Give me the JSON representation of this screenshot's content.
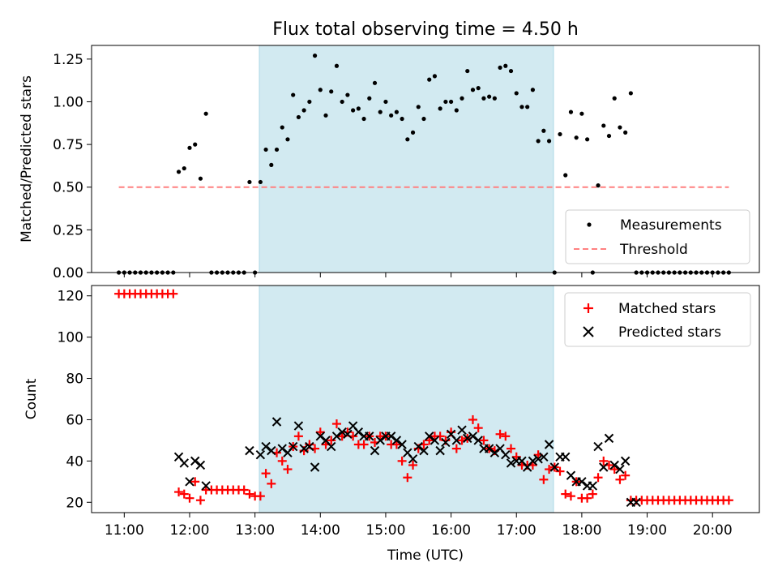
{
  "title": "Flux total observing time = 4.50 h",
  "colors": {
    "window_fill": "#add8e6",
    "measurement": "#000000",
    "threshold": "#ff8080",
    "matched": "#ff0000",
    "predicted": "#000000"
  },
  "chart_data": [
    {
      "type": "scatter",
      "panel": "top",
      "ylabel": "Matched/Predicted stars",
      "xlabel": "",
      "ylim": [
        0,
        1.33
      ],
      "yticks": [
        0.0,
        0.25,
        0.5,
        0.75,
        1.0,
        1.25
      ],
      "ytick_labels": [
        "0.00",
        "0.25",
        "0.50",
        "0.75",
        "1.00",
        "1.25"
      ],
      "observing_window_utc": [
        "13:04",
        "17:34"
      ],
      "legend_position": "lower right",
      "threshold": {
        "name": "Threshold",
        "value": 0.5,
        "x_range": [
          "10:55",
          "20:15"
        ],
        "style": "dashed"
      },
      "series": [
        {
          "name": "Measurements",
          "x": [
            "10:55",
            "11:00",
            "11:05",
            "11:10",
            "11:15",
            "11:20",
            "11:25",
            "11:30",
            "11:35",
            "11:40",
            "11:45",
            "11:50",
            "11:55",
            "12:00",
            "12:05",
            "12:10",
            "12:15",
            "12:20",
            "12:25",
            "12:30",
            "12:35",
            "12:40",
            "12:45",
            "12:50",
            "12:55",
            "13:00",
            "13:05",
            "13:10",
            "13:15",
            "13:20",
            "13:25",
            "13:30",
            "13:35",
            "13:40",
            "13:45",
            "13:50",
            "13:55",
            "14:00",
            "14:05",
            "14:10",
            "14:15",
            "14:20",
            "14:25",
            "14:30",
            "14:35",
            "14:40",
            "14:45",
            "14:50",
            "14:55",
            "15:00",
            "15:05",
            "15:10",
            "15:15",
            "15:20",
            "15:25",
            "15:30",
            "15:35",
            "15:40",
            "15:45",
            "15:50",
            "15:55",
            "16:00",
            "16:05",
            "16:10",
            "16:15",
            "16:20",
            "16:25",
            "16:30",
            "16:35",
            "16:40",
            "16:45",
            "16:50",
            "16:55",
            "17:00",
            "17:05",
            "17:10",
            "17:15",
            "17:20",
            "17:25",
            "17:30",
            "17:35",
            "17:40",
            "17:45",
            "17:50",
            "17:55",
            "18:00",
            "18:05",
            "18:10",
            "18:15",
            "18:20",
            "18:25",
            "18:30",
            "18:35",
            "18:40",
            "18:45",
            "18:50",
            "18:55",
            "19:00",
            "19:05",
            "19:10",
            "19:15",
            "19:20",
            "19:25",
            "19:30",
            "19:35",
            "19:40",
            "19:45",
            "19:50",
            "19:55",
            "20:00",
            "20:05",
            "20:10",
            "20:15"
          ],
          "y": [
            0,
            0,
            0,
            0,
            0,
            0,
            0,
            0,
            0,
            0,
            0,
            0.59,
            0.61,
            0.73,
            0.75,
            0.55,
            0.93,
            0,
            0,
            0,
            0,
            0,
            0,
            0,
            0.53,
            0,
            0.53,
            0.72,
            0.63,
            0.72,
            0.85,
            0.78,
            1.04,
            0.91,
            0.95,
            1.0,
            1.27,
            1.07,
            0.92,
            1.06,
            1.21,
            1.0,
            1.04,
            0.95,
            0.96,
            0.9,
            1.02,
            1.11,
            0.94,
            1.0,
            0.92,
            0.94,
            0.9,
            0.78,
            0.82,
            0.97,
            0.9,
            1.13,
            1.15,
            0.96,
            1.0,
            1.0,
            0.95,
            1.02,
            1.18,
            1.07,
            1.08,
            1.02,
            1.03,
            1.02,
            1.2,
            1.21,
            1.18,
            1.05,
            0.97,
            0.97,
            1.07,
            0.77,
            0.83,
            0.77,
            0,
            0.81,
            0.57,
            0.94,
            0.79,
            0.93,
            0.78,
            0,
            0.51,
            0.86,
            0.8,
            1.02,
            0.85,
            0.82,
            1.05,
            0,
            0,
            0,
            0,
            0,
            0,
            0,
            0,
            0,
            0,
            0,
            0,
            0,
            0,
            0,
            0,
            0,
            0
          ]
        }
      ]
    },
    {
      "type": "scatter",
      "panel": "bottom",
      "xlabel": "Time (UTC)",
      "ylabel": "Count",
      "ylim": [
        15,
        125
      ],
      "yticks": [
        20,
        40,
        60,
        80,
        100,
        120
      ],
      "ytick_labels": [
        "20",
        "40",
        "60",
        "80",
        "100",
        "120"
      ],
      "xticks": [
        "11:00",
        "12:00",
        "13:00",
        "14:00",
        "15:00",
        "16:00",
        "17:00",
        "18:00",
        "19:00",
        "20:00"
      ],
      "xlim": [
        "10:30",
        "20:43"
      ],
      "legend_position": "upper right",
      "series": [
        {
          "name": "Matched stars",
          "x": [
            "10:55",
            "11:00",
            "11:05",
            "11:10",
            "11:15",
            "11:20",
            "11:25",
            "11:30",
            "11:35",
            "11:40",
            "11:45",
            "11:50",
            "11:55",
            "12:00",
            "12:05",
            "12:10",
            "12:15",
            "12:20",
            "12:25",
            "12:30",
            "12:35",
            "12:40",
            "12:45",
            "12:50",
            "12:55",
            "13:00",
            "13:05",
            "13:10",
            "13:15",
            "13:20",
            "13:25",
            "13:30",
            "13:35",
            "13:40",
            "13:45",
            "13:50",
            "13:55",
            "14:00",
            "14:05",
            "14:10",
            "14:15",
            "14:20",
            "14:25",
            "14:30",
            "14:35",
            "14:40",
            "14:45",
            "14:50",
            "14:55",
            "15:00",
            "15:05",
            "15:10",
            "15:15",
            "15:20",
            "15:25",
            "15:30",
            "15:35",
            "15:40",
            "15:45",
            "15:50",
            "15:55",
            "16:00",
            "16:05",
            "16:10",
            "16:15",
            "16:20",
            "16:25",
            "16:30",
            "16:35",
            "16:40",
            "16:45",
            "16:50",
            "16:55",
            "17:00",
            "17:05",
            "17:10",
            "17:15",
            "17:20",
            "17:25",
            "17:30",
            "17:35",
            "17:40",
            "17:45",
            "17:50",
            "17:55",
            "18:00",
            "18:05",
            "18:10",
            "18:15",
            "18:20",
            "18:25",
            "18:30",
            "18:35",
            "18:40",
            "18:45",
            "18:50",
            "18:55",
            "19:00",
            "19:05",
            "19:10",
            "19:15",
            "19:20",
            "19:25",
            "19:30",
            "19:35",
            "19:40",
            "19:45",
            "19:50",
            "19:55",
            "20:00",
            "20:05",
            "20:10",
            "20:15"
          ],
          "y": [
            121,
            121,
            121,
            121,
            121,
            121,
            121,
            121,
            121,
            121,
            121,
            25,
            24,
            22,
            30,
            21,
            26,
            26,
            26,
            26,
            26,
            26,
            26,
            26,
            24,
            23,
            23,
            34,
            29,
            44,
            40,
            36,
            47,
            52,
            45,
            48,
            46,
            54,
            48,
            50,
            58,
            52,
            54,
            52,
            48,
            48,
            52,
            49,
            52,
            52,
            48,
            48,
            40,
            32,
            38,
            46,
            48,
            50,
            52,
            52,
            50,
            54,
            46,
            50,
            51,
            60,
            56,
            50,
            46,
            45,
            53,
            52,
            46,
            42,
            38,
            38,
            38,
            43,
            31,
            36,
            37,
            35,
            24,
            23,
            30,
            22,
            22,
            24,
            32,
            40,
            38,
            36,
            31,
            33,
            21,
            21,
            21,
            21,
            21,
            21,
            21,
            21,
            21,
            21,
            21,
            21,
            21,
            21,
            21,
            21,
            21,
            21,
            21
          ]
        },
        {
          "name": "Predicted stars",
          "x": [
            "11:50",
            "11:55",
            "12:00",
            "12:05",
            "12:10",
            "12:15",
            "12:55",
            "13:05",
            "13:10",
            "13:15",
            "13:20",
            "13:25",
            "13:30",
            "13:35",
            "13:40",
            "13:45",
            "13:50",
            "13:55",
            "14:00",
            "14:05",
            "14:10",
            "14:15",
            "14:20",
            "14:25",
            "14:30",
            "14:35",
            "14:40",
            "14:45",
            "14:50",
            "14:55",
            "15:00",
            "15:05",
            "15:10",
            "15:15",
            "15:20",
            "15:25",
            "15:30",
            "15:35",
            "15:40",
            "15:45",
            "15:50",
            "15:55",
            "16:00",
            "16:05",
            "16:10",
            "16:15",
            "16:20",
            "16:25",
            "16:30",
            "16:35",
            "16:40",
            "16:45",
            "16:50",
            "16:55",
            "17:00",
            "17:05",
            "17:10",
            "17:15",
            "17:20",
            "17:25",
            "17:30",
            "17:35",
            "17:40",
            "17:45",
            "17:50",
            "17:55",
            "18:00",
            "18:05",
            "18:10",
            "18:15",
            "18:20",
            "18:25",
            "18:30",
            "18:35",
            "18:40",
            "18:45",
            "18:50"
          ],
          "y": [
            42,
            39,
            30,
            40,
            38,
            28,
            45,
            43,
            47,
            45,
            59,
            46,
            44,
            47,
            57,
            46,
            47,
            37,
            52,
            50,
            47,
            52,
            54,
            53,
            57,
            54,
            52,
            52,
            45,
            50,
            52,
            52,
            50,
            48,
            44,
            41,
            47,
            45,
            52,
            50,
            45,
            49,
            53,
            50,
            55,
            51,
            52,
            50,
            46,
            46,
            44,
            46,
            43,
            39,
            40,
            40,
            37,
            40,
            41,
            42,
            48,
            37,
            42,
            42,
            33,
            30,
            30,
            28,
            28,
            47,
            37,
            51,
            38,
            36,
            40,
            20,
            20
          ]
        }
      ]
    }
  ]
}
